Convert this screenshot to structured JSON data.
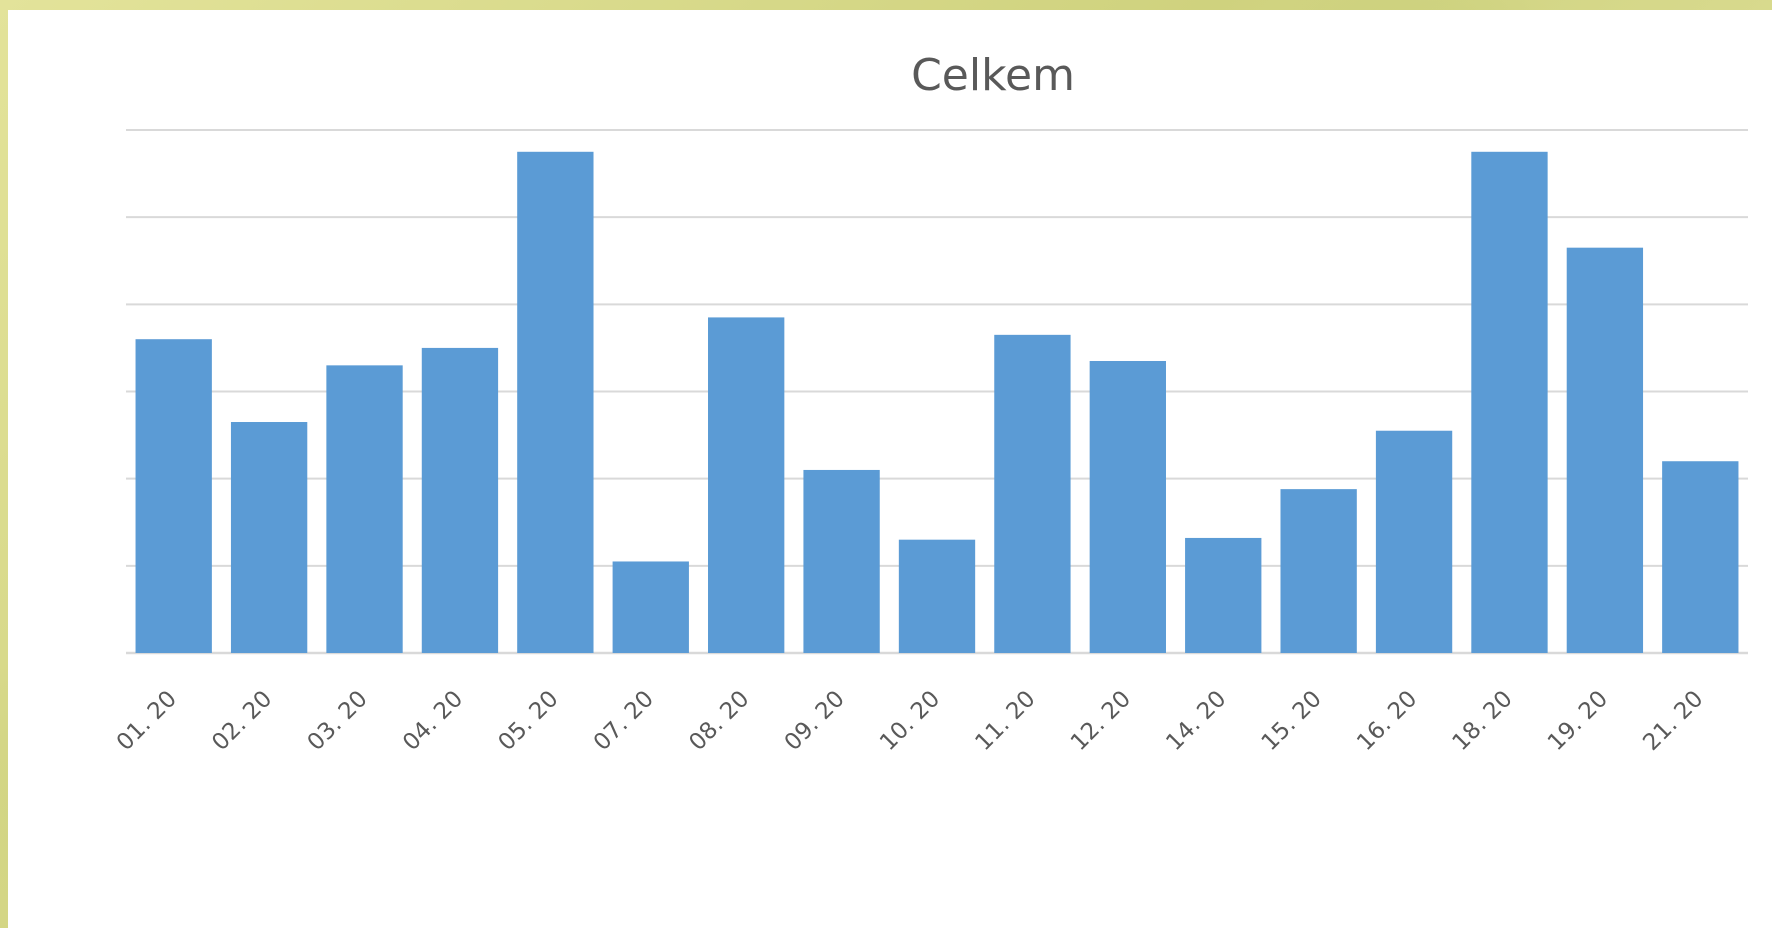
{
  "chart_data": {
    "type": "bar",
    "title": "Celkem",
    "xlabel": "",
    "ylabel": "",
    "categories": [
      "01. 20",
      "02. 20",
      "03. 20",
      "04. 20",
      "05. 20",
      "07. 20",
      "08. 20",
      "09. 20",
      "10. 20",
      "11. 20",
      "12. 20",
      "14. 20",
      "15. 20",
      "16. 20",
      "18. 20",
      "19. 20",
      "21. 20"
    ],
    "values": [
      3.6,
      2.65,
      3.3,
      3.5,
      5.75,
      1.05,
      3.85,
      2.1,
      1.3,
      3.65,
      3.35,
      1.32,
      1.88,
      2.55,
      5.75,
      4.65,
      2.2
    ],
    "ylim": [
      0,
      6
    ],
    "y_tick_step": 1,
    "y_tick_labels_shown": false,
    "grid": true,
    "legend": "none",
    "bar_color": "#5b9bd5",
    "gridline_color": "#d9d9d9",
    "text_color": "#595959"
  },
  "background_color": "#d9da8c"
}
